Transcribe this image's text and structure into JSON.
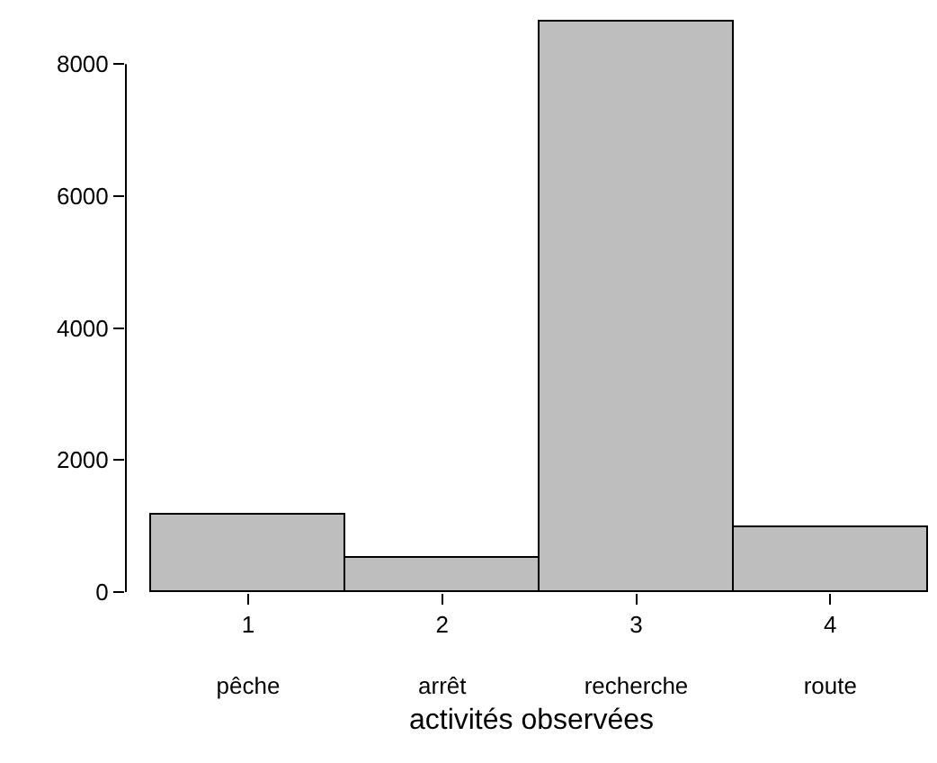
{
  "chart_data": {
    "type": "bar",
    "categories": [
      "1\n\npêche",
      "2\n\narrêt",
      "3\n\nrecherche",
      "4\n\nroute"
    ],
    "values": [
      1170,
      520,
      8650,
      970
    ],
    "color": "#bebebe",
    "xlabel": "activités observées",
    "ylim": [
      0,
      8700
    ],
    "yticks": [
      0,
      2000,
      4000,
      6000,
      8000
    ]
  }
}
